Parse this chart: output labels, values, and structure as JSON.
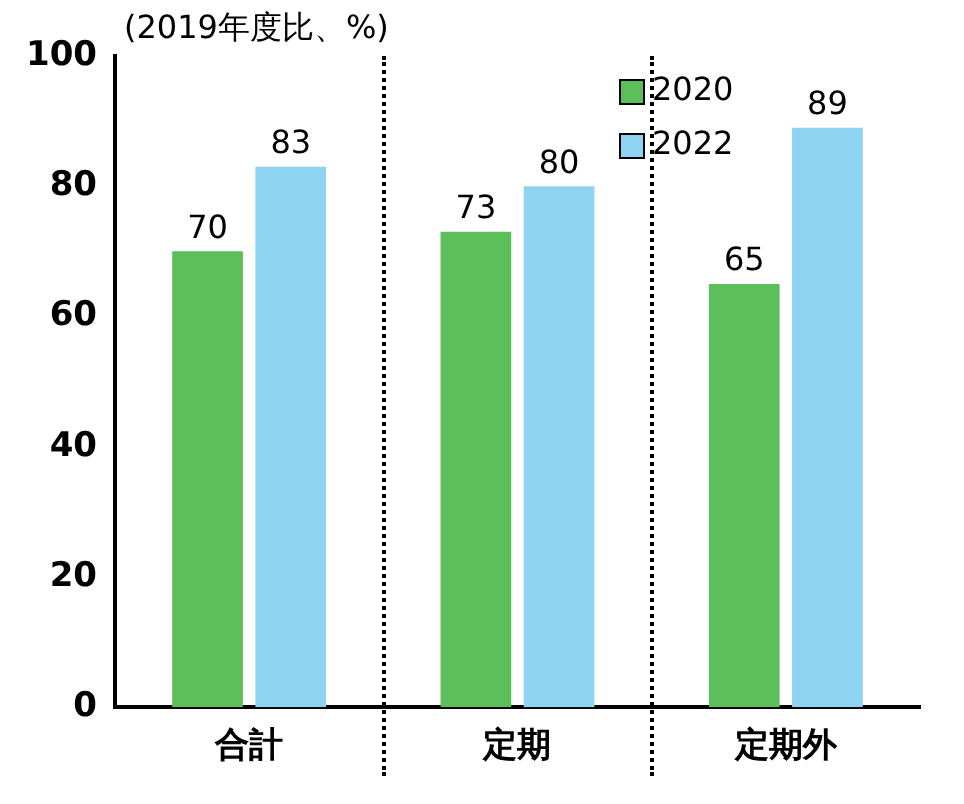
{
  "chart_data": {
    "type": "bar",
    "ylabel": "(2019年度比、%)",
    "categories": [
      "合計",
      "定期",
      "定期外"
    ],
    "series": [
      {
        "name": "2020",
        "color": "#5cbf5a",
        "values": [
          70,
          73,
          65
        ]
      },
      {
        "name": "2022",
        "color": "#8ed4f2",
        "values": [
          83,
          80,
          89
        ]
      }
    ],
    "ylim": [
      0,
      100
    ],
    "yticks": [
      0,
      20,
      40,
      60,
      80,
      100
    ],
    "grid": false,
    "legend": "top right",
    "data_labels": true
  }
}
